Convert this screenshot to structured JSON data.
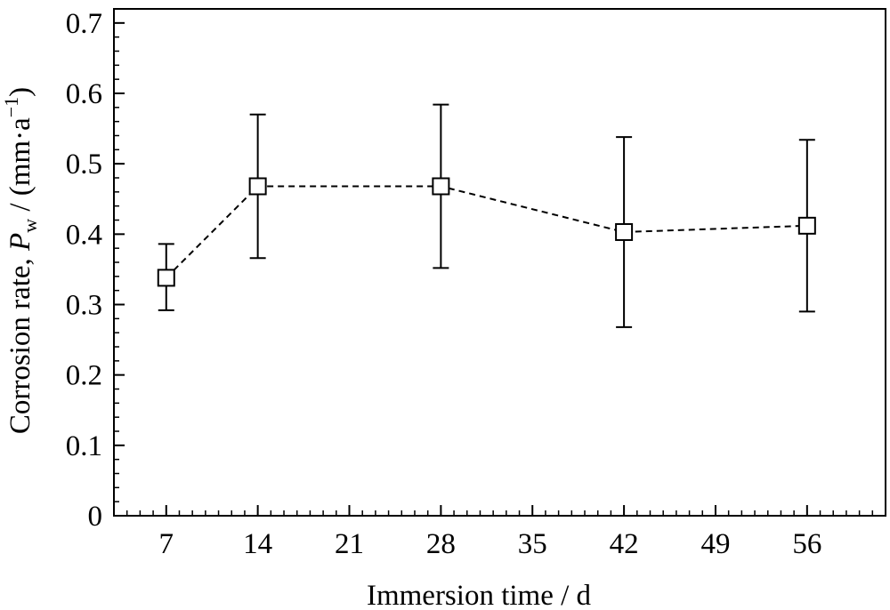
{
  "chart_data": {
    "type": "scatter",
    "xlabel": "Immersion time / d",
    "ylabel_parts": {
      "prefix": "Corrosion rate, ",
      "symbol": "P",
      "subscript": "w",
      "unit_open": " / (mm·a",
      "superscript": "−1",
      "unit_close": ")"
    },
    "xlim": [
      3,
      62
    ],
    "ylim": [
      0,
      0.72
    ],
    "x_ticks": [
      7,
      14,
      21,
      28,
      35,
      42,
      49,
      56
    ],
    "y_ticks": [
      0,
      0.1,
      0.2,
      0.3,
      0.4,
      0.5,
      0.6,
      0.7
    ],
    "y_tick_labels": [
      "0",
      "0.1",
      "0.2",
      "0.3",
      "0.4",
      "0.5",
      "0.6",
      "0.7"
    ],
    "series": [
      {
        "marker": "open-square",
        "line_style": "dashed",
        "color": "#000000",
        "points": [
          {
            "x": 7,
            "y": 0.338,
            "err_low": 0.292,
            "err_high": 0.386
          },
          {
            "x": 14,
            "y": 0.468,
            "err_low": 0.366,
            "err_high": 0.57
          },
          {
            "x": 28,
            "y": 0.468,
            "err_low": 0.352,
            "err_high": 0.584
          },
          {
            "x": 42,
            "y": 0.403,
            "err_low": 0.268,
            "err_high": 0.538
          },
          {
            "x": 56,
            "y": 0.412,
            "err_low": 0.29,
            "err_high": 0.534
          }
        ]
      }
    ]
  }
}
